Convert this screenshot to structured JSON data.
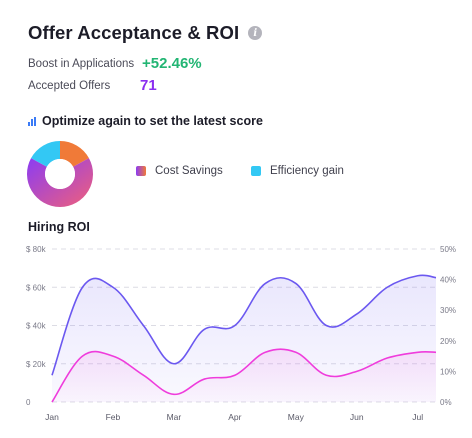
{
  "header": {
    "title": "Offer Acceptance & ROI",
    "info_icon": "info-icon"
  },
  "metrics": {
    "boost": {
      "label": "Boost in Applications",
      "value": "+52.46%",
      "color": "#22b573"
    },
    "accepted": {
      "label": "Accepted Offers",
      "value": "71",
      "color": "#8b2ef0"
    }
  },
  "optimize": {
    "title": "Optimize again to set the latest score",
    "icon": "bar-chart-icon"
  },
  "donut": {
    "segments": [
      {
        "name": "orange",
        "fraction": 0.17,
        "color": "#f07a38"
      },
      {
        "name": "gradient",
        "fraction": 0.66,
        "color": "#d04fa0"
      },
      {
        "name": "cyan",
        "fraction": 0.17,
        "color": "#33c8f4"
      }
    ]
  },
  "legend": [
    {
      "label": "Cost Savings",
      "color": "#a04ff0"
    },
    {
      "label": "Efficiency gain",
      "color": "#33c8f4"
    }
  ],
  "chart_data": {
    "type": "area",
    "title": "Hiring ROI",
    "x": [
      0,
      0.5,
      1,
      1.5,
      2,
      2.5,
      3,
      3.5,
      4,
      4.5,
      5,
      5.5,
      6,
      6.3
    ],
    "x_tick_labels": [
      "Jan",
      "Feb",
      "Mar",
      "Apr",
      "May",
      "Jun",
      "Jul"
    ],
    "y_left": {
      "ticks": [
        "0",
        "$ 20k",
        "$ 40k",
        "$ 60k",
        "$ 80k"
      ],
      "range": [
        0,
        80000
      ]
    },
    "y_right": {
      "ticks": [
        "0%",
        "10%",
        "20%",
        "30%",
        "40%",
        "50%"
      ],
      "range": [
        0,
        50
      ]
    },
    "grid": true,
    "series": [
      {
        "values": [
          14000,
          60000,
          60000,
          40000,
          20000,
          38000,
          40000,
          62000,
          62000,
          40000,
          46000,
          60000,
          66000,
          65000
        ],
        "color": "#6b58f0",
        "axis": "left"
      },
      {
        "values": [
          0,
          24000,
          24000,
          14000,
          4000,
          12000,
          14000,
          26000,
          26000,
          14000,
          16000,
          23000,
          26000,
          26000
        ],
        "color": "#ef3cdc",
        "axis": "left"
      }
    ]
  }
}
